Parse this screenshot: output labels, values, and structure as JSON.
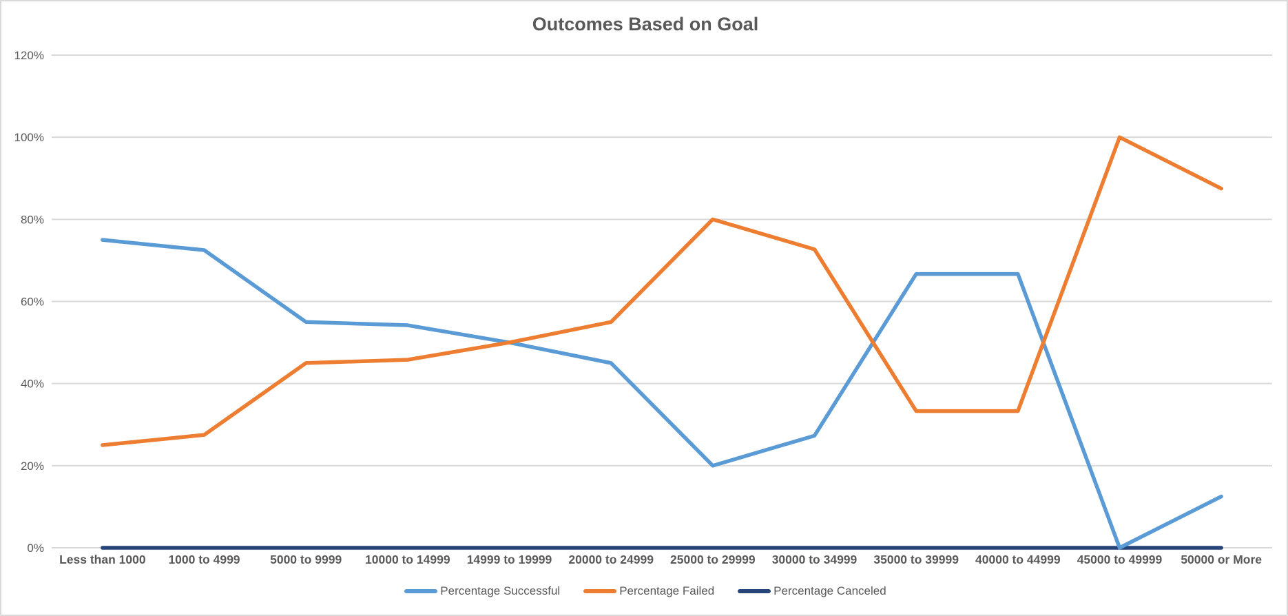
{
  "chart_data": {
    "type": "line",
    "title": "Outcomes Based on Goal",
    "categories": [
      "Less than 1000",
      "1000 to 4999",
      "5000 to 9999",
      "10000 to 14999",
      "14999 to 19999",
      "20000 to 24999",
      "25000 to 29999",
      "30000 to 34999",
      "35000 to 39999",
      "40000 to 44999",
      "45000 to 49999",
      "50000 or More"
    ],
    "series": [
      {
        "name": "Percentage Successful",
        "color": "#5B9BD5",
        "values": [
          75,
          72.5,
          55,
          54.2,
          50,
          45,
          20,
          27.3,
          66.7,
          66.7,
          0,
          12.5
        ]
      },
      {
        "name": "Percentage Failed",
        "color": "#ED7D31",
        "values": [
          25,
          27.5,
          45,
          45.8,
          50,
          55,
          80,
          72.7,
          33.3,
          33.3,
          100,
          87.5
        ]
      },
      {
        "name": "Percentage Canceled",
        "color": "#264478",
        "values": [
          0,
          0,
          0,
          0,
          0,
          0,
          0,
          0,
          0,
          0,
          0,
          0
        ]
      }
    ],
    "ylim": [
      0,
      120
    ],
    "ytick_values": [
      0,
      20,
      40,
      60,
      80,
      100,
      120
    ],
    "yticks": [
      "0%",
      "20%",
      "40%",
      "60%",
      "80%",
      "100%",
      "120%"
    ],
    "xlabel": "",
    "ylabel": "",
    "grid": true,
    "legend_position": "bottom"
  },
  "colors": {
    "background": "#FFFFFF",
    "frame_border": "#D9D9D9",
    "gridline": "#D9D9D9",
    "text": "#595959"
  }
}
